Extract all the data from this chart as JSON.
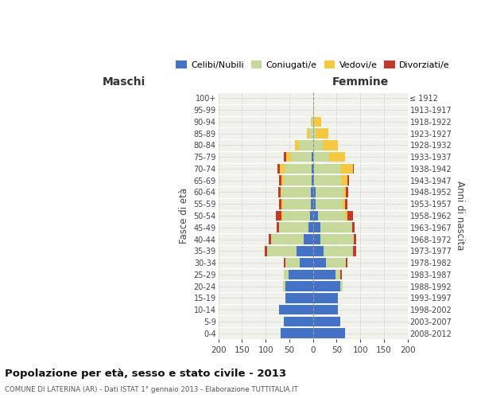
{
  "age_groups_bottom_to_top": [
    "0-4",
    "5-9",
    "10-14",
    "15-19",
    "20-24",
    "25-29",
    "30-34",
    "35-39",
    "40-44",
    "45-49",
    "50-54",
    "55-59",
    "60-64",
    "65-69",
    "70-74",
    "75-79",
    "80-84",
    "85-89",
    "90-94",
    "95-99",
    "100+"
  ],
  "birth_years_bottom_to_top": [
    "2008-2012",
    "2003-2007",
    "1998-2002",
    "1993-1997",
    "1988-1992",
    "1983-1987",
    "1978-1982",
    "1973-1977",
    "1968-1972",
    "1963-1967",
    "1958-1962",
    "1953-1957",
    "1948-1952",
    "1943-1947",
    "1938-1942",
    "1933-1937",
    "1928-1932",
    "1923-1927",
    "1918-1922",
    "1913-1917",
    "≤ 1912"
  ],
  "maschi": {
    "celibi": [
      68,
      62,
      72,
      58,
      58,
      52,
      28,
      35,
      20,
      10,
      6,
      4,
      4,
      3,
      2,
      2,
      0,
      0,
      0,
      0,
      0
    ],
    "coniugati": [
      0,
      0,
      0,
      0,
      5,
      10,
      30,
      62,
      68,
      62,
      58,
      60,
      62,
      58,
      58,
      45,
      30,
      8,
      3,
      0,
      0
    ],
    "vedovi": [
      0,
      0,
      0,
      0,
      0,
      0,
      0,
      0,
      0,
      0,
      2,
      2,
      2,
      5,
      10,
      10,
      8,
      5,
      2,
      0,
      0
    ],
    "divorziati": [
      0,
      0,
      0,
      0,
      0,
      0,
      3,
      5,
      5,
      5,
      12,
      5,
      5,
      5,
      5,
      5,
      0,
      0,
      0,
      0,
      0
    ]
  },
  "femmine": {
    "nubili": [
      68,
      58,
      52,
      52,
      58,
      48,
      28,
      22,
      15,
      15,
      10,
      5,
      5,
      2,
      2,
      0,
      0,
      0,
      0,
      0,
      0
    ],
    "coniugate": [
      0,
      0,
      0,
      0,
      5,
      10,
      42,
      62,
      72,
      68,
      58,
      58,
      60,
      58,
      55,
      35,
      20,
      5,
      2,
      0,
      0
    ],
    "vedove": [
      0,
      0,
      0,
      0,
      0,
      0,
      0,
      0,
      0,
      0,
      5,
      5,
      5,
      12,
      28,
      32,
      32,
      28,
      15,
      2,
      0
    ],
    "divorziate": [
      0,
      0,
      0,
      0,
      0,
      3,
      3,
      8,
      5,
      5,
      12,
      5,
      5,
      5,
      2,
      0,
      0,
      0,
      0,
      0,
      0
    ]
  },
  "colors": {
    "celibi": "#4472C4",
    "coniugati": "#C5D99A",
    "vedovi": "#F5C842",
    "divorziati": "#C0392B"
  },
  "xlim": 200,
  "title": "Popolazione per età, sesso e stato civile - 2013",
  "subtitle": "COMUNE DI LATERINA (AR) - Dati ISTAT 1° gennaio 2013 - Elaborazione TUTTITALIA.IT",
  "ylabel": "Fasce di età",
  "ylabel_right": "Anni di nascita",
  "xlabel_left": "Maschi",
  "xlabel_right": "Femmine",
  "bg_color": "#FFFFFF",
  "plot_bg_color": "#F2F2EC",
  "grid_color": "#CCCCCC"
}
